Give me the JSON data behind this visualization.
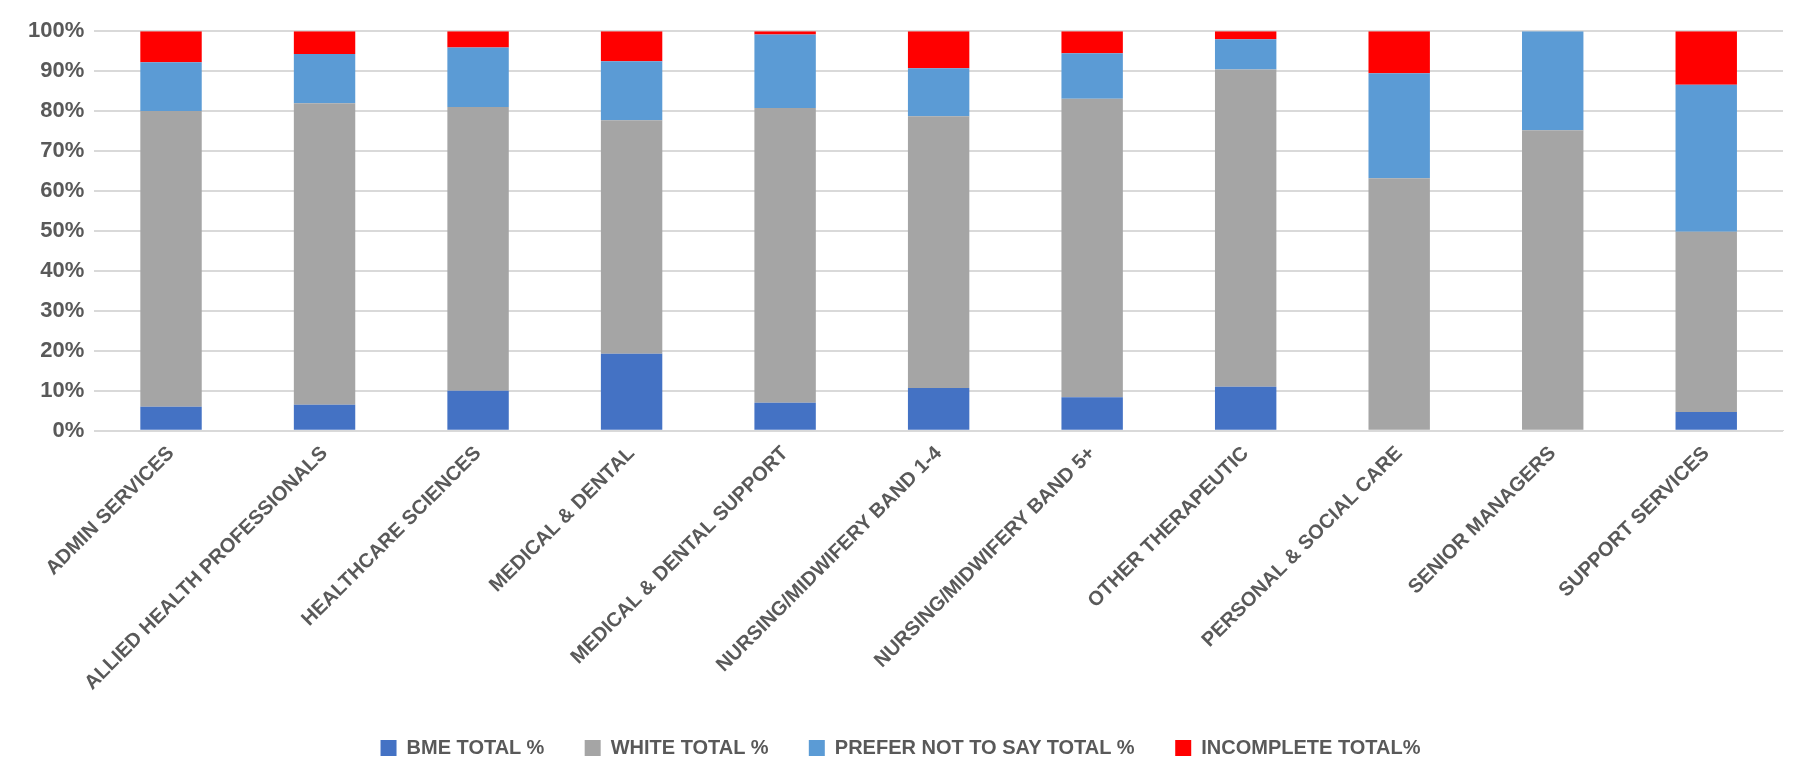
{
  "chart_data": {
    "type": "bar",
    "stacked": true,
    "categories": [
      "ADMIN SERVICES",
      "ALLIED HEALTH PROFESSIONALS",
      "HEALTHCARE SCIENCES",
      "MEDICAL & DENTAL",
      "MEDICAL & DENTAL SUPPORT",
      "NURSING/MIDWIFERY BAND 1-4",
      "NURSING/MIDWIFERY BAND 5+",
      "OTHER THERAPEUTIC",
      "PERSONAL & SOCIAL CARE",
      "SENIOR MANAGERS",
      "SUPPORT SERVICES"
    ],
    "series": [
      {
        "name": "BME TOTAL %",
        "color": "#4472c4",
        "values": [
          6,
          6.5,
          10,
          19.3,
          7,
          10.7,
          8.4,
          11,
          0,
          0,
          4.7
        ]
      },
      {
        "name": "WHITE TOTAL %",
        "color": "#a5a5a5",
        "values": [
          74,
          75.5,
          71,
          58.4,
          73.8,
          68,
          74.7,
          79.4,
          63.2,
          75.2,
          45.1
        ]
      },
      {
        "name": "PREFER NOT TO SAY TOTAL %",
        "color": "#5b9bd5",
        "values": [
          12.2,
          12.3,
          14.9,
          14.8,
          18.4,
          12,
          11.4,
          7.6,
          26.3,
          24.8,
          36.8
        ]
      },
      {
        "name": "INCOMPLETE TOTAL%",
        "color": "#ff0000",
        "values": [
          7.8,
          5.7,
          4.1,
          7.5,
          0.8,
          9.3,
          5.5,
          2,
          10.5,
          0,
          13.4
        ]
      }
    ],
    "ylim": [
      0,
      100
    ],
    "yticks": [
      {
        "value": 0,
        "label": "0%"
      },
      {
        "value": 10,
        "label": "10%"
      },
      {
        "value": 20,
        "label": "20%"
      },
      {
        "value": 30,
        "label": "30%"
      },
      {
        "value": 40,
        "label": "40%"
      },
      {
        "value": 50,
        "label": "50%"
      },
      {
        "value": 60,
        "label": "60%"
      },
      {
        "value": 70,
        "label": "70%"
      },
      {
        "value": 80,
        "label": "80%"
      },
      {
        "value": 90,
        "label": "90%"
      },
      {
        "value": 100,
        "label": "100%"
      }
    ],
    "grid": "y",
    "legend": "bottom"
  }
}
